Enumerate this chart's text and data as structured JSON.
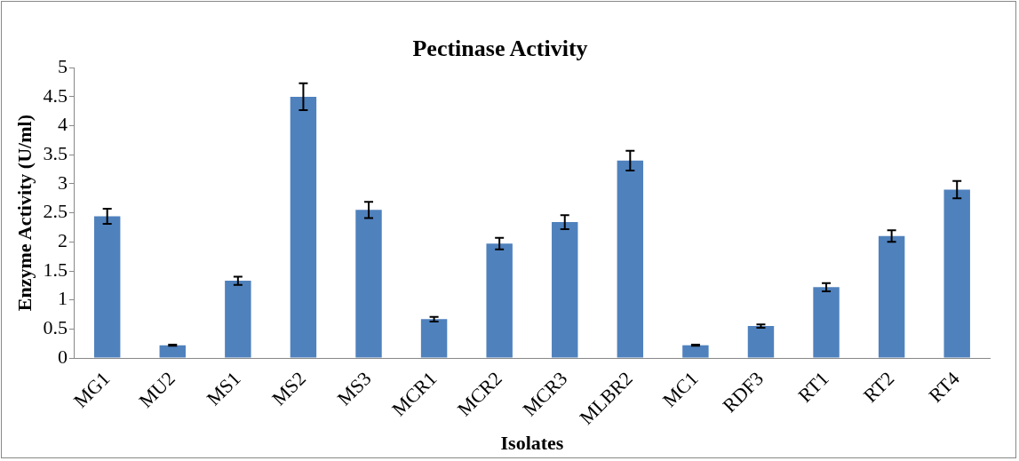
{
  "chart_data": {
    "type": "bar",
    "title": "Pectinase Activity",
    "xlabel": "Isolates",
    "ylabel": "Enzyme Activity (U/ml)",
    "categories": [
      "MG1",
      "MU2",
      "MS1",
      "MS2",
      "MS3",
      "MCR1",
      "MCR2",
      "MCR3",
      "MLBR2",
      "MC1",
      "RDF3",
      "RT1",
      "RT2",
      "RT4"
    ],
    "values": [
      2.44,
      0.22,
      1.33,
      4.5,
      2.55,
      0.67,
      1.97,
      2.34,
      3.4,
      0.22,
      0.55,
      1.22,
      2.1,
      2.9
    ],
    "errors": [
      0.13,
      0.01,
      0.07,
      0.23,
      0.14,
      0.04,
      0.1,
      0.12,
      0.17,
      0.01,
      0.03,
      0.07,
      0.1,
      0.15
    ],
    "color": "#4f81bd",
    "ylim": [
      0,
      5
    ],
    "yticks": [
      0,
      0.5,
      1,
      1.5,
      2,
      2.5,
      3,
      3.5,
      4,
      4.5,
      5
    ],
    "grid": false,
    "legend": false
  }
}
